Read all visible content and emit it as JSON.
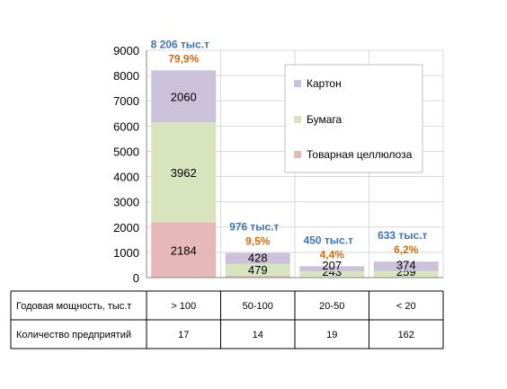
{
  "chart_data": {
    "type": "bar",
    "stacked": true,
    "categories": [
      "> 100",
      "50-100",
      "20-50",
      "< 20"
    ],
    "series": [
      {
        "name": "Товарная целлюлоза",
        "color": "#e6b9b8",
        "values": [
          2184,
          69,
          0,
          0
        ]
      },
      {
        "name": "Бумага",
        "color": "#d7e4bd",
        "values": [
          3962,
          479,
          243,
          259
        ]
      },
      {
        "name": "Картон",
        "color": "#ccc1da",
        "values": [
          2060,
          428,
          207,
          374
        ]
      }
    ],
    "segment_labels": [
      [
        "2184",
        "",
        "",
        ""
      ],
      [
        "3962",
        "479",
        "243",
        "259"
      ],
      [
        "2060",
        "428",
        "207",
        "374"
      ]
    ],
    "totals": [
      "8 206 тыс.т",
      "976 тыс.т",
      "450 тыс.т",
      "633 тыс.т"
    ],
    "shares": [
      "79,9%",
      "9,5%",
      "4,4%",
      "6,2%"
    ],
    "y_ticks": [
      "0",
      "1000",
      "2000",
      "3000",
      "4000",
      "5000",
      "6000",
      "7000",
      "8000",
      "9000"
    ],
    "ylim": [
      0,
      9000
    ],
    "grid": true,
    "legend_position": "top-right",
    "total_color": "#3f74b5",
    "share_color": "#d46b0d"
  },
  "table": {
    "rows": [
      {
        "header": "Годовая мощность, тыс.т",
        "cells": [
          "> 100",
          "50-100",
          "20-50",
          "< 20"
        ]
      },
      {
        "header": "Количество предприятий",
        "cells": [
          "17",
          "14",
          "19",
          "162"
        ]
      }
    ]
  }
}
